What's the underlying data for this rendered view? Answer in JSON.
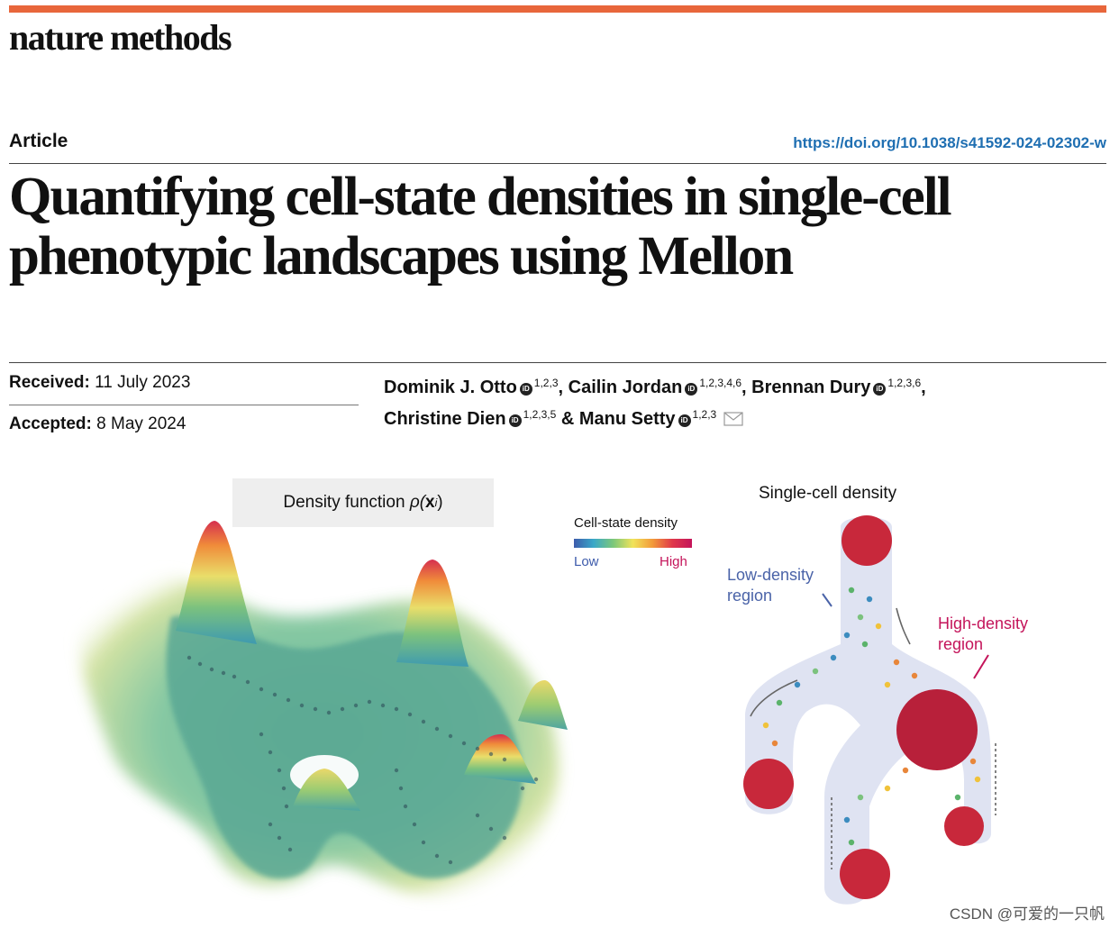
{
  "journal": {
    "name": "nature methods",
    "brand_color": "#e8663b"
  },
  "header": {
    "article_type": "Article",
    "doi": "https://doi.org/10.1038/s41592-024-02302-w",
    "doi_color": "#1f6fb2"
  },
  "title": "Quantifying cell-state densities in single-cell phenotypic landscapes using Mellon",
  "dates": {
    "received_label": "Received:",
    "received_value": "11 July 2023",
    "accepted_label": "Accepted:",
    "accepted_value": "8 May 2024"
  },
  "authors": [
    {
      "name": "Dominik J. Otto",
      "aff": "1,2,3",
      "sep": ", "
    },
    {
      "name": "Cailin Jordan",
      "aff": "1,2,3,4,6",
      "sep": ", "
    },
    {
      "name": "Brennan Dury",
      "aff": "1,2,3,6",
      "sep": ","
    },
    {
      "name": "Christine Dien",
      "aff": "1,2,3,5",
      "sep": " & "
    },
    {
      "name": "Manu Setty",
      "aff": "1,2,3",
      "sep": ""
    }
  ],
  "figure": {
    "density_label_prefix": "Density function ",
    "density_label_rho": "ρ(",
    "density_label_x": "x",
    "density_label_i": "i",
    "density_label_close": ")",
    "legend_title": "Cell-state density",
    "legend_low": "Low",
    "legend_high": "High",
    "single_cell_title": "Single-cell density",
    "low_region_label": "Low-density region",
    "high_region_label": "High-density region",
    "colors": {
      "low": "#3d5bab",
      "high": "#c4145a"
    }
  },
  "watermark": "CSDN @可爱的一只帆"
}
